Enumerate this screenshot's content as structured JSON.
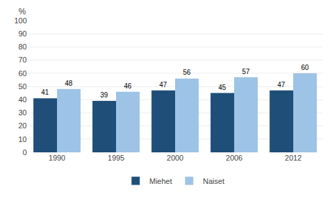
{
  "chart_data": {
    "type": "bar",
    "categories": [
      "1990",
      "1995",
      "2000",
      "2006",
      "2012"
    ],
    "series": [
      {
        "name": "Miehet",
        "color": "#1F4E79",
        "values": [
          41,
          39,
          47,
          45,
          47
        ]
      },
      {
        "name": "Naiset",
        "color": "#9DC3E6",
        "values": [
          48,
          46,
          56,
          57,
          60
        ]
      }
    ],
    "ylabel": "%",
    "ylim": [
      0,
      100
    ],
    "yticks": [
      0,
      10,
      20,
      30,
      40,
      50,
      60,
      70,
      80,
      90,
      100
    ],
    "grid": true,
    "legend": "bottom",
    "data_labels": true
  }
}
